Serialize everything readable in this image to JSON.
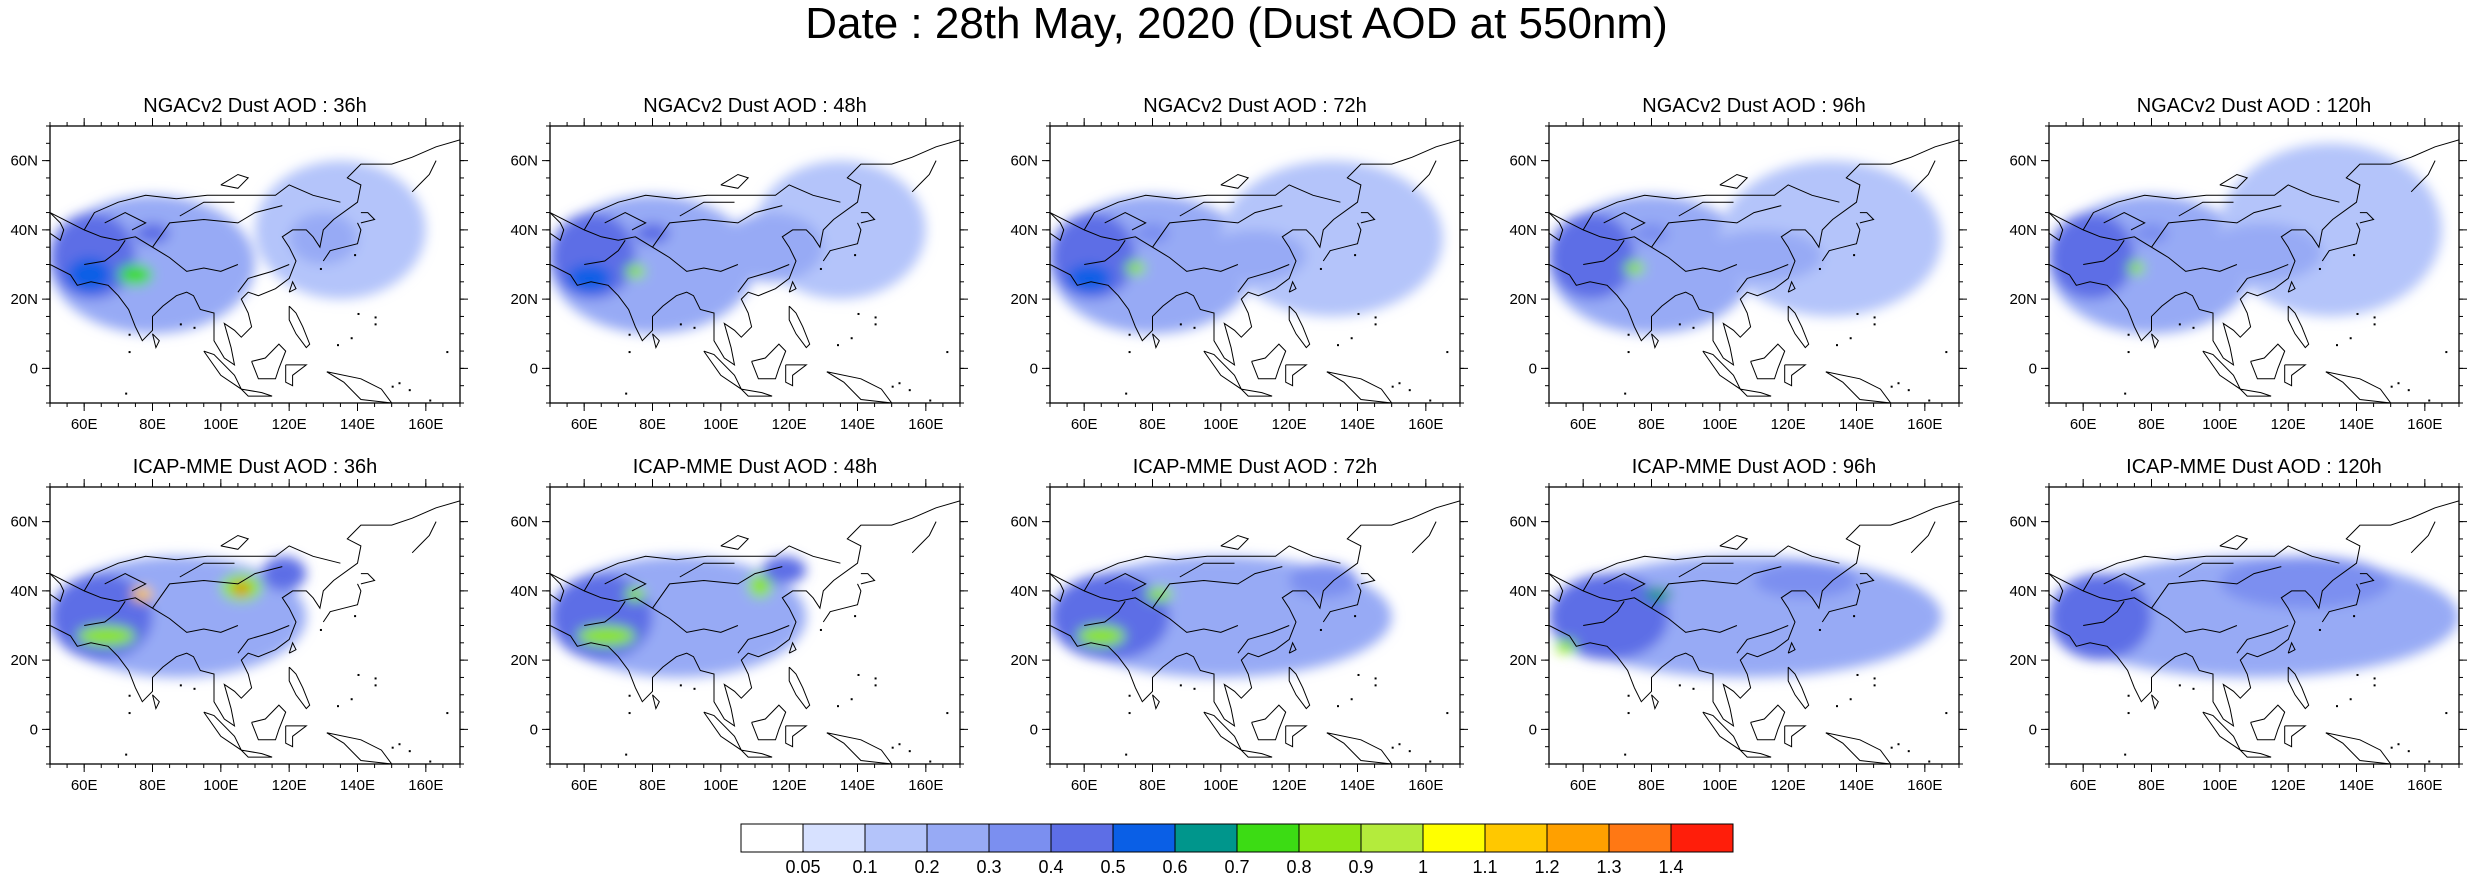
{
  "title": "Date : 28th May, 2020 (Dust AOD at 550nm)",
  "panels": [
    {
      "row": 0,
      "col": 0,
      "title": "NGACv2 Dust AOD : 36h"
    },
    {
      "row": 0,
      "col": 1,
      "title": "NGACv2 Dust AOD : 48h"
    },
    {
      "row": 0,
      "col": 2,
      "title": "NGACv2 Dust AOD : 72h"
    },
    {
      "row": 0,
      "col": 3,
      "title": "NGACv2 Dust AOD : 96h"
    },
    {
      "row": 0,
      "col": 4,
      "title": "NGACv2 Dust AOD : 120h"
    },
    {
      "row": 1,
      "col": 0,
      "title": "ICAP-MME Dust AOD : 36h"
    },
    {
      "row": 1,
      "col": 1,
      "title": "ICAP-MME Dust AOD : 48h"
    },
    {
      "row": 1,
      "col": 2,
      "title": "ICAP-MME Dust AOD : 72h"
    },
    {
      "row": 1,
      "col": 3,
      "title": "ICAP-MME Dust AOD : 96h"
    },
    {
      "row": 1,
      "col": 4,
      "title": "ICAP-MME Dust AOD : 120h"
    }
  ],
  "map_extent": {
    "lon": [
      50,
      170
    ],
    "lat": [
      -10,
      70
    ]
  },
  "lon_ticks": [
    {
      "value": 60,
      "label": "60E"
    },
    {
      "value": 80,
      "label": "80E"
    },
    {
      "value": 100,
      "label": "100E"
    },
    {
      "value": 120,
      "label": "120E"
    },
    {
      "value": 140,
      "label": "140E"
    },
    {
      "value": 160,
      "label": "160E"
    }
  ],
  "lat_ticks": [
    {
      "value": 60,
      "label": "60N"
    },
    {
      "value": 40,
      "label": "40N"
    },
    {
      "value": 20,
      "label": "20N"
    },
    {
      "value": 0,
      "label": "0"
    }
  ],
  "colorbar": {
    "colors": [
      "#ffffff",
      "#d7e1ff",
      "#b4c4fa",
      "#97aaf5",
      "#7b8ff0",
      "#5d6ee6",
      "#0a5fe6",
      "#00968c",
      "#3cdc14",
      "#8ce614",
      "#b4eb3c",
      "#ffff00",
      "#ffc800",
      "#ffa000",
      "#ff7814",
      "#ff1e0a"
    ],
    "labels": [
      "0.05",
      "0.1",
      "0.2",
      "0.3",
      "0.4",
      "0.5",
      "0.6",
      "0.7",
      "0.8",
      "0.9",
      "1",
      "1.1",
      "1.2",
      "1.3",
      "1.4"
    ]
  },
  "chart_data": {
    "type": "heatmap",
    "variable": "Dust AOD at 550nm",
    "date": "28th May, 2020",
    "region": {
      "lon": [
        50,
        170
      ],
      "lat": [
        -10,
        70
      ]
    },
    "panels": [
      {
        "model": "NGACv2",
        "lead": "36h",
        "features": [
          {
            "lon": [
              50,
              110
            ],
            "lat": [
              10,
              50
            ],
            "aod": 0.2
          },
          {
            "lon": [
              50,
              75
            ],
            "lat": [
              20,
              45
            ],
            "aod": 0.4
          },
          {
            "lon": [
              55,
              68
            ],
            "lat": [
              22,
              32
            ],
            "aod": 0.5
          },
          {
            "lon": [
              70,
              80
            ],
            "lat": [
              24,
              30
            ],
            "aod": 0.7
          },
          {
            "lon": [
              75,
              85
            ],
            "lat": [
              36,
              42
            ],
            "aod": 0.4
          },
          {
            "lon": [
              110,
              160
            ],
            "lat": [
              20,
              60
            ],
            "aod": 0.1
          },
          {
            "lon": [
              120,
              140
            ],
            "lat": [
              30,
              45
            ],
            "aod": 0.2
          }
        ]
      },
      {
        "model": "NGACv2",
        "lead": "48h",
        "features": [
          {
            "lon": [
              50,
              110
            ],
            "lat": [
              10,
              50
            ],
            "aod": 0.2
          },
          {
            "lon": [
              50,
              75
            ],
            "lat": [
              20,
              45
            ],
            "aod": 0.4
          },
          {
            "lon": [
              55,
              68
            ],
            "lat": [
              22,
              30
            ],
            "aod": 0.5
          },
          {
            "lon": [
              72,
              78
            ],
            "lat": [
              26,
              30
            ],
            "aod": 0.8
          },
          {
            "lon": [
              75,
              85
            ],
            "lat": [
              36,
              42
            ],
            "aod": 0.4
          },
          {
            "lon": [
              110,
              160
            ],
            "lat": [
              20,
              60
            ],
            "aod": 0.1
          },
          {
            "lon": [
              100,
              130
            ],
            "lat": [
              25,
              45
            ],
            "aod": 0.2
          }
        ]
      },
      {
        "model": "NGACv2",
        "lead": "72h",
        "features": [
          {
            "lon": [
              50,
              110
            ],
            "lat": [
              10,
              50
            ],
            "aod": 0.2
          },
          {
            "lon": [
              50,
              75
            ],
            "lat": [
              20,
              45
            ],
            "aod": 0.4
          },
          {
            "lon": [
              55,
              68
            ],
            "lat": [
              22,
              30
            ],
            "aod": 0.5
          },
          {
            "lon": [
              72,
              78
            ],
            "lat": [
              27,
              31
            ],
            "aod": 0.8
          },
          {
            "lon": [
              75,
              85
            ],
            "lat": [
              36,
              42
            ],
            "aod": 0.3
          },
          {
            "lon": [
              100,
              165
            ],
            "lat": [
              15,
              60
            ],
            "aod": 0.1
          },
          {
            "lon": [
              95,
              125
            ],
            "lat": [
              25,
              40
            ],
            "aod": 0.2
          }
        ]
      },
      {
        "model": "NGACv2",
        "lead": "96h",
        "features": [
          {
            "lon": [
              50,
              110
            ],
            "lat": [
              10,
              50
            ],
            "aod": 0.2
          },
          {
            "lon": [
              50,
              75
            ],
            "lat": [
              20,
              45
            ],
            "aod": 0.4
          },
          {
            "lon": [
              72,
              78
            ],
            "lat": [
              27,
              31
            ],
            "aod": 0.8
          },
          {
            "lon": [
              75,
              85
            ],
            "lat": [
              36,
              42
            ],
            "aod": 0.3
          },
          {
            "lon": [
              100,
              165
            ],
            "lat": [
              15,
              60
            ],
            "aod": 0.1
          },
          {
            "lon": [
              95,
              130
            ],
            "lat": [
              25,
              40
            ],
            "aod": 0.2
          }
        ]
      },
      {
        "model": "NGACv2",
        "lead": "120h",
        "features": [
          {
            "lon": [
              50,
              110
            ],
            "lat": [
              10,
              50
            ],
            "aod": 0.2
          },
          {
            "lon": [
              50,
              75
            ],
            "lat": [
              20,
              45
            ],
            "aod": 0.4
          },
          {
            "lon": [
              73,
              78
            ],
            "lat": [
              27,
              31
            ],
            "aod": 0.8
          },
          {
            "lon": [
              75,
              85
            ],
            "lat": [
              36,
              42
            ],
            "aod": 0.3
          },
          {
            "lon": [
              100,
              165
            ],
            "lat": [
              15,
              65
            ],
            "aod": 0.1
          },
          {
            "lon": [
              95,
              130
            ],
            "lat": [
              25,
              42
            ],
            "aod": 0.2
          }
        ]
      },
      {
        "model": "ICAP-MME",
        "lead": "36h",
        "features": [
          {
            "lon": [
              50,
              125
            ],
            "lat": [
              15,
              50
            ],
            "aod": 0.2
          },
          {
            "lon": [
              50,
              80
            ],
            "lat": [
              20,
              45
            ],
            "aod": 0.4
          },
          {
            "lon": [
              58,
              75
            ],
            "lat": [
              24,
              30
            ],
            "aod": 0.8
          },
          {
            "lon": [
              74,
              80
            ],
            "lat": [
              37,
              41
            ],
            "aod": 1.1
          },
          {
            "lon": [
              100,
              112
            ],
            "lat": [
              37,
              45
            ],
            "aod": 0.8
          },
          {
            "lon": [
              104,
              108
            ],
            "lat": [
              39,
              42
            ],
            "aod": 1.4
          },
          {
            "lon": [
              112,
              125
            ],
            "lat": [
              40,
              50
            ],
            "aod": 0.4
          }
        ]
      },
      {
        "model": "ICAP-MME",
        "lead": "48h",
        "features": [
          {
            "lon": [
              50,
              125
            ],
            "lat": [
              15,
              50
            ],
            "aod": 0.2
          },
          {
            "lon": [
              50,
              80
            ],
            "lat": [
              20,
              45
            ],
            "aod": 0.4
          },
          {
            "lon": [
              58,
              75
            ],
            "lat": [
              24,
              30
            ],
            "aod": 0.8
          },
          {
            "lon": [
              72,
              78
            ],
            "lat": [
              37,
              41
            ],
            "aod": 0.8
          },
          {
            "lon": [
              108,
              115
            ],
            "lat": [
              38,
              45
            ],
            "aod": 0.8
          },
          {
            "lon": [
              112,
              125
            ],
            "lat": [
              42,
              50
            ],
            "aod": 0.4
          }
        ]
      },
      {
        "model": "ICAP-MME",
        "lead": "72h",
        "features": [
          {
            "lon": [
              50,
              150
            ],
            "lat": [
              15,
              50
            ],
            "aod": 0.2
          },
          {
            "lon": [
              50,
              85
            ],
            "lat": [
              20,
              45
            ],
            "aod": 0.4
          },
          {
            "lon": [
              58,
              72
            ],
            "lat": [
              24,
              30
            ],
            "aod": 0.8
          },
          {
            "lon": [
              78,
              86
            ],
            "lat": [
              37,
              41
            ],
            "aod": 0.8
          },
          {
            "lon": [
              120,
              140
            ],
            "lat": [
              38,
              48
            ],
            "aod": 0.3
          }
        ]
      },
      {
        "model": "ICAP-MME",
        "lead": "96h",
        "features": [
          {
            "lon": [
              50,
              165
            ],
            "lat": [
              15,
              50
            ],
            "aod": 0.2
          },
          {
            "lon": [
              50,
              85
            ],
            "lat": [
              20,
              45
            ],
            "aod": 0.4
          },
          {
            "lon": [
              52,
              58
            ],
            "lat": [
              22,
              26
            ],
            "aod": 0.8
          },
          {
            "lon": [
              78,
              86
            ],
            "lat": [
              37,
              41
            ],
            "aod": 0.6
          },
          {
            "lon": [
              110,
              140
            ],
            "lat": [
              38,
              48
            ],
            "aod": 0.3
          }
        ]
      },
      {
        "model": "ICAP-MME",
        "lead": "120h",
        "features": [
          {
            "lon": [
              50,
              170
            ],
            "lat": [
              15,
              50
            ],
            "aod": 0.2
          },
          {
            "lon": [
              50,
              80
            ],
            "lat": [
              20,
              45
            ],
            "aod": 0.4
          },
          {
            "lon": [
              100,
              150
            ],
            "lat": [
              35,
              50
            ],
            "aod": 0.3
          }
        ]
      }
    ]
  }
}
